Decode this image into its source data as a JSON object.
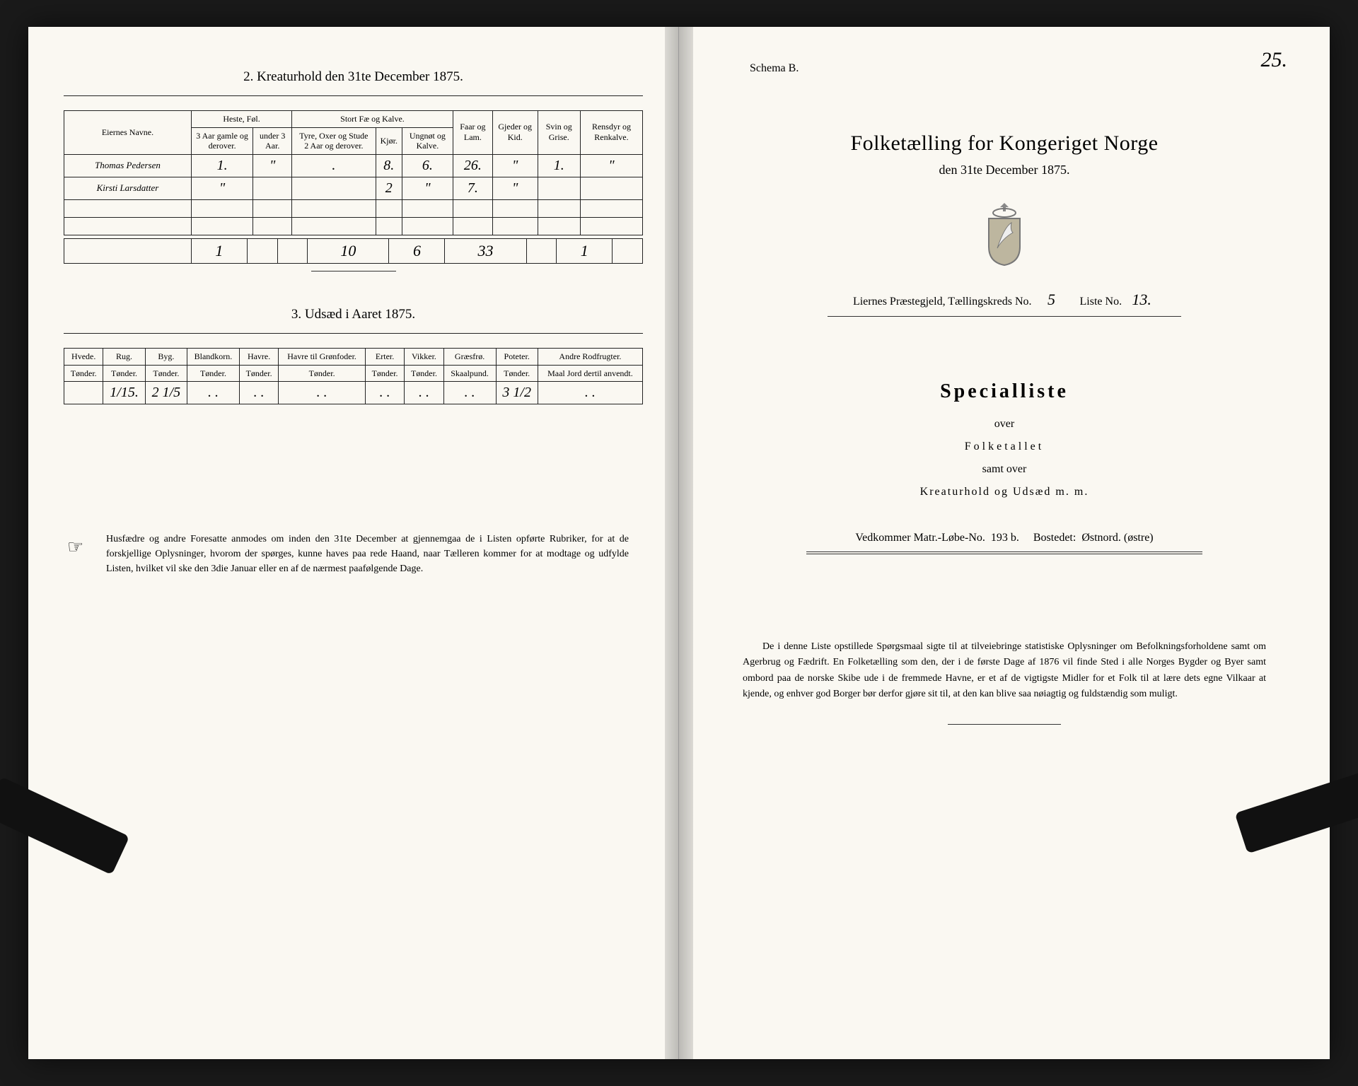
{
  "left": {
    "section2_title": "2.  Kreaturhold den 31te December 1875.",
    "table2": {
      "head_owner": "Eiernes Navne.",
      "group_horses": "Heste, Føl.",
      "group_cattle": "Stort Fæ og Kalve.",
      "col_horse_old": "3 Aar gamle og derover.",
      "col_horse_young": "under 3 Aar.",
      "col_bulls": "Tyre, Oxer og Stude 2 Aar og derover.",
      "col_cows": "Kjør.",
      "col_calves": "Ungnøt og Kalve.",
      "col_sheep": "Faar og Lam.",
      "col_goats": "Gjeder og Kid.",
      "col_pigs": "Svin og Grise.",
      "col_reindeer": "Rensdyr og Renkalve.",
      "rows": [
        {
          "name": "Thomas Pedersen",
          "v": [
            "1.",
            "\"",
            ".",
            "8.",
            "6.",
            "26.",
            "\"",
            "1.",
            "\""
          ]
        },
        {
          "name": "Kirsti Larsdatter",
          "v": [
            "\"",
            "",
            "",
            "2",
            "\"",
            "7.",
            "\"",
            "",
            ""
          ]
        }
      ],
      "totals": [
        "1",
        "",
        "",
        "10",
        "6",
        "33",
        "",
        "1",
        ""
      ]
    },
    "section3_title": "3.  Udsæd i Aaret 1875.",
    "table3": {
      "cols": [
        "Hvede.",
        "Rug.",
        "Byg.",
        "Blandkorn.",
        "Havre.",
        "Havre til Grønfoder.",
        "Erter.",
        "Vikker.",
        "Græsfrø.",
        "Poteter.",
        "Andre Rodfrugter."
      ],
      "units": [
        "Tønder.",
        "Tønder.",
        "Tønder.",
        "Tønder.",
        "Tønder.",
        "Tønder.",
        "Tønder.",
        "Tønder.",
        "Skaalpund.",
        "Tønder.",
        "Maal Jord dertil anvendt."
      ],
      "row": [
        "",
        "1/15.",
        "2 1/5",
        ". .",
        ". .",
        ". .",
        ". .",
        ". .",
        ". .",
        "3 1/2",
        ". ."
      ]
    },
    "footnote_text": "Husfædre og andre Foresatte anmodes om inden den 31te December at gjennemgaa de i Listen opførte Rubriker, for at de forskjellige Oplysninger, hvorom der spørges, kunne haves paa rede Haand, naar Tælleren kommer for at modtage og udfylde Listen, hvilket vil ske den 3die Januar eller en af de nærmest paafølgende Dage."
  },
  "right": {
    "schema": "Schema B.",
    "page_number": "25.",
    "title": "Folketælling for Kongeriget Norge",
    "subtitle": "den 31te December 1875.",
    "meta_prefix": "Liernes Præstegjeld,  Tællingskreds No.",
    "meta_kreds": "5",
    "meta_liste_label": "Liste No.",
    "meta_liste": "13.",
    "specialliste": "Specialliste",
    "over": "over",
    "folketallet": "Folketallet",
    "samt_over": "samt over",
    "kreatur": "Kreaturhold og Udsæd m. m.",
    "matr_label": "Vedkommer Matr.-Løbe-No.",
    "matr_no": "193 b.",
    "bostedet_label": "Bostedet:",
    "bostedet": "Østnord. (østre)",
    "footnote": "De i denne Liste opstillede Spørgsmaal sigte til at tilveiebringe statistiske Oplysninger om Befolkningsforholdene samt om Agerbrug og Fædrift.  En Folketælling som den, der i de første Dage af 1876 vil finde Sted i alle Norges Bygder og Byer samt ombord paa de norske Skibe ude i de fremmede Havne, er et af de vigtigste Midler for et Folk til at lære dets egne Vilkaar at kjende, og enhver god Borger bør derfor gjøre sit til, at den kan blive saa nøiagtig og fuldstændig som muligt."
  }
}
